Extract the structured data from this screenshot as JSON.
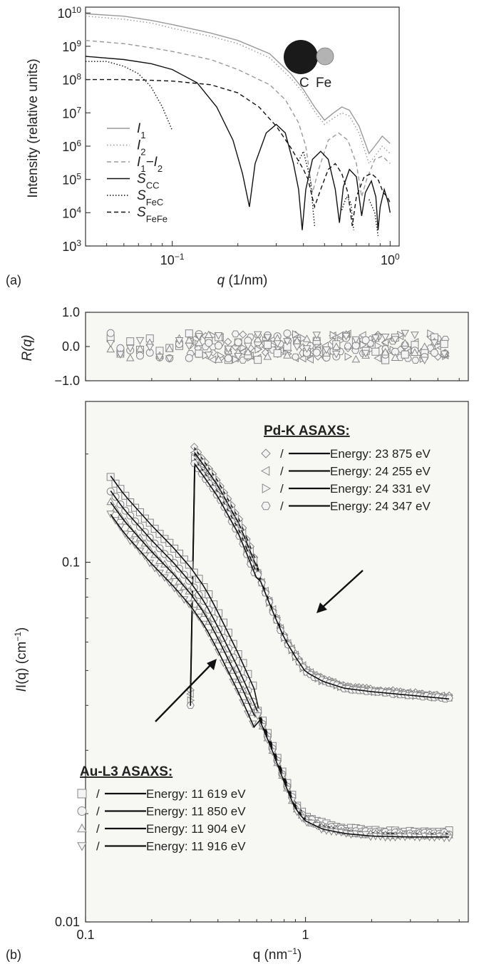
{
  "chart_data": [
    {
      "type": "line",
      "panel_label": "(a)",
      "xlabel_var": "q",
      "xlabel_unit": " (1/nm)",
      "ylabel": "Intensity (relative units)",
      "x_scale": "log",
      "y_scale": "log",
      "xlim": [
        0.04,
        1.1
      ],
      "ylim": [
        1000,
        15000000000
      ],
      "x_ticks": [
        {
          "base": "10",
          "exp": "−1",
          "value": 0.1
        },
        {
          "base": "10",
          "exp": "0",
          "value": 1
        }
      ],
      "y_ticks": [
        {
          "base": "10",
          "exp": "3",
          "value": 1000
        },
        {
          "base": "10",
          "exp": "4",
          "value": 10000
        },
        {
          "base": "10",
          "exp": "5",
          "value": 100000
        },
        {
          "base": "10",
          "exp": "6",
          "value": 1000000
        },
        {
          "base": "10",
          "exp": "7",
          "value": 10000000
        },
        {
          "base": "10",
          "exp": "8",
          "value": 100000000
        },
        {
          "base": "10",
          "exp": "9",
          "value": 1000000000
        },
        {
          "base": "10",
          "exp": "10",
          "value": 10000000000
        }
      ],
      "legend_position": "left",
      "series": [
        {
          "name": "I",
          "name_sub": "1",
          "color": "#9a9a9a",
          "dash": "",
          "points": [
            [
              0.04,
              9500000000.0
            ],
            [
              0.06,
              8000000000.0
            ],
            [
              0.08,
              6000000000.0
            ],
            [
              0.1,
              4500000000.0
            ],
            [
              0.15,
              2500000000.0
            ],
            [
              0.2,
              1500000000.0
            ],
            [
              0.28,
              600000000.0
            ],
            [
              0.35,
              150000000.0
            ],
            [
              0.4,
              50000000.0
            ],
            [
              0.45,
              15000000.0
            ],
            [
              0.5,
              6000000.0
            ],
            [
              0.55,
              10000000.0
            ],
            [
              0.6,
              15000000.0
            ],
            [
              0.65,
              12000000.0
            ],
            [
              0.72,
              4000000.0
            ],
            [
              0.8,
              600000.0
            ],
            [
              0.85,
              1000000.0
            ],
            [
              0.92,
              2000000.0
            ],
            [
              1.0,
              1200000.0
            ]
          ]
        },
        {
          "name": "I",
          "name_sub": "2",
          "color": "#9a9a9a",
          "dash": "1.5 3",
          "points": [
            [
              0.04,
              8000000000.0
            ],
            [
              0.06,
              6500000000.0
            ],
            [
              0.08,
              5000000000.0
            ],
            [
              0.1,
              3500000000.0
            ],
            [
              0.15,
              2000000000.0
            ],
            [
              0.2,
              1200000000.0
            ],
            [
              0.28,
              450000000.0
            ],
            [
              0.35,
              110000000.0
            ],
            [
              0.4,
              40000000.0
            ],
            [
              0.45,
              11000000.0
            ],
            [
              0.5,
              4500000.0
            ],
            [
              0.55,
              7000000.0
            ],
            [
              0.6,
              10000000.0
            ],
            [
              0.65,
              8000000.0
            ],
            [
              0.72,
              2500000.0
            ],
            [
              0.8,
              300000.0
            ],
            [
              0.85,
              500000.0
            ],
            [
              0.92,
              1000000.0
            ],
            [
              1.0,
              600000.0
            ]
          ]
        },
        {
          "name": "I",
          "name_sub": "1",
          "name_tail": "−I",
          "name_sub2": "2",
          "color": "#9a9a9a",
          "dash": "6 4",
          "points": [
            [
              0.04,
              1500000000.0
            ],
            [
              0.06,
              1200000000.0
            ],
            [
              0.08,
              900000000.0
            ],
            [
              0.1,
              700000000.0
            ],
            [
              0.15,
              400000000.0
            ],
            [
              0.2,
              200000000.0
            ],
            [
              0.28,
              70000000.0
            ],
            [
              0.33,
              25000000.0
            ],
            [
              0.38,
              5000000.0
            ],
            [
              0.41,
              1000000.0
            ],
            [
              0.44,
              40000.0
            ],
            [
              0.47,
              200000.0
            ],
            [
              0.52,
              1500000.0
            ],
            [
              0.58,
              2500000.0
            ],
            [
              0.64,
              1500000.0
            ],
            [
              0.7,
              300000.0
            ],
            [
              0.74,
              30000.0
            ],
            [
              0.78,
              100000.0
            ],
            [
              0.85,
              400000.0
            ],
            [
              0.92,
              500000.0
            ],
            [
              1.0,
              300000.0
            ]
          ]
        },
        {
          "name": "S",
          "name_sub": "CC",
          "color": "#111111",
          "dash": "",
          "points": [
            [
              0.04,
              500000000.0
            ],
            [
              0.06,
              400000000.0
            ],
            [
              0.08,
              300000000.0
            ],
            [
              0.1,
              200000000.0
            ],
            [
              0.13,
              80000000.0
            ],
            [
              0.16,
              15000000.0
            ],
            [
              0.19,
              1500000.0
            ],
            [
              0.21,
              150000.0
            ],
            [
              0.226,
              15000.0
            ],
            [
              0.24,
              300000.0
            ],
            [
              0.27,
              2500000.0
            ],
            [
              0.3,
              4500000.0
            ],
            [
              0.33,
              2500000.0
            ],
            [
              0.36,
              300000.0
            ],
            [
              0.38,
              50000.0
            ],
            [
              0.395,
              3000.0
            ],
            [
              0.41,
              50000.0
            ],
            [
              0.44,
              400000.0
            ],
            [
              0.48,
              700000.0
            ],
            [
              0.52,
              400000.0
            ],
            [
              0.56,
              50000.0
            ],
            [
              0.585,
              5000.0
            ],
            [
              0.61,
              60000.0
            ],
            [
              0.65,
              200000.0
            ],
            [
              0.7,
              120000.0
            ],
            [
              0.74,
              8000.0
            ],
            [
              0.77,
              40000.0
            ],
            [
              0.82,
              90000.0
            ],
            [
              0.86,
              30000.0
            ],
            [
              0.88,
              3000.0
            ],
            [
              0.9,
              15000.0
            ],
            [
              0.94,
              50000.0
            ],
            [
              0.98,
              20000.0
            ],
            [
              1.0,
              10000.0
            ]
          ]
        },
        {
          "name": "S",
          "name_sub": "FeC",
          "color": "#111111",
          "dash": "1.5 2.5",
          "groups": [
            [
              [
                0.04,
                350000000.0
              ],
              [
                0.05,
                350000000.0
              ],
              [
                0.06,
                250000000.0
              ],
              [
                0.07,
                150000000.0
              ],
              [
                0.08,
                60000000.0
              ],
              [
                0.09,
                15000000.0
              ],
              [
                0.1,
                3000000.0
              ]
            ],
            [
              [
                0.375,
                300000.0
              ],
              [
                0.4,
                700000.0
              ],
              [
                0.43,
                100000.0
              ],
              [
                0.45,
                4000.0
              ]
            ],
            [
              [
                0.6,
                12000.0
              ],
              [
                0.63,
                30000.0
              ],
              [
                0.66,
                20000.0
              ],
              [
                0.68,
                3000.0
              ]
            ],
            [
              [
                0.8,
                25000.0
              ],
              [
                0.85,
                10000.0
              ],
              [
                0.88,
                2000.0
              ]
            ]
          ]
        },
        {
          "name": "S",
          "name_sub": "FeFe",
          "color": "#111111",
          "dash": "6 4",
          "points": [
            [
              0.04,
              100000000.0
            ],
            [
              0.06,
              100000000.0
            ],
            [
              0.08,
              95000000.0
            ],
            [
              0.1,
              90000000.0
            ],
            [
              0.15,
              70000000.0
            ],
            [
              0.2,
              40000000.0
            ],
            [
              0.25,
              15000000.0
            ],
            [
              0.3,
              4000000.0
            ],
            [
              0.35,
              900000.0
            ],
            [
              0.4,
              200000.0
            ],
            [
              0.42,
              100000.0
            ],
            [
              0.45,
              15000.0
            ],
            [
              0.48,
              50000.0
            ],
            [
              0.52,
              200000.0
            ],
            [
              0.56,
              300000.0
            ],
            [
              0.6,
              150000.0
            ],
            [
              0.64,
              40000.0
            ],
            [
              0.67,
              4000.0
            ],
            [
              0.7,
              30000.0
            ],
            [
              0.76,
              120000.0
            ],
            [
              0.82,
              150000.0
            ],
            [
              0.88,
              100000.0
            ],
            [
              0.93,
              40000.0
            ],
            [
              0.97,
              30000.0
            ],
            [
              1.0,
              20000.0
            ]
          ]
        }
      ],
      "inset": {
        "label_c": "C",
        "label_fe": "Fe"
      }
    },
    {
      "type": "scatter",
      "panel_label": "(b)",
      "xlabel_base": "q (nm",
      "xlabel_exp": "−1",
      "xlabel_end": ")",
      "x_scale": "log",
      "xlim": [
        0.1,
        5.5
      ],
      "x_ticks": [
        {
          "label": "0.1",
          "value": 0.1
        },
        {
          "label": "1",
          "value": 1
        }
      ],
      "residuals": {
        "ylabel": "R(q)",
        "ylim": [
          -1.0,
          1.0
        ],
        "y_ticks": [
          "1.0",
          "0.0",
          "−1.0"
        ],
        "y_tick_values": [
          1.0,
          0.0,
          -1.0
        ],
        "note": "residual scatter of all fits around 0, spread about ±0.4"
      },
      "main": {
        "ylabel_base": "I(q) (cm",
        "ylabel_exp": "−1",
        "ylabel_end": ")",
        "y_scale": "log",
        "ylim": [
          0.01,
          0.28
        ],
        "y_ticks": [
          {
            "label": "0.1",
            "value": 0.1
          },
          {
            "label": "0.01",
            "value": 0.01
          }
        ]
      },
      "groups": [
        {
          "title": "Pd-K ASAXS:",
          "legend_position": "top-right",
          "entries": [
            {
              "marker": "diamond",
              "sep": "/",
              "label": "Energy: 23 875 eV"
            },
            {
              "marker": "triangle-left",
              "sep": "/",
              "label": "Energy: 24 255 eV"
            },
            {
              "marker": "triangle-right",
              "sep": "/",
              "label": "Energy: 24 331 eV"
            },
            {
              "marker": "hexagon",
              "sep": "/",
              "label": "Energy: 24 347 eV"
            }
          ],
          "curve": [
            [
              0.3,
              0.205
            ],
            [
              0.35,
              0.18
            ],
            [
              0.4,
              0.16
            ],
            [
              0.5,
              0.125
            ],
            [
              0.6,
              0.095
            ],
            [
              0.7,
              0.075
            ],
            [
              0.8,
              0.062
            ],
            [
              0.9,
              0.055
            ],
            [
              1.0,
              0.05
            ],
            [
              1.2,
              0.047
            ],
            [
              1.5,
              0.045
            ],
            [
              2.0,
              0.044
            ],
            [
              3.0,
              0.043
            ],
            [
              4.5,
              0.042
            ]
          ],
          "curve_factors": [
            1.05,
            1.02,
            0.98,
            0.95
          ]
        },
        {
          "title": "Au-L3 ASAXS:",
          "legend_position": "bottom-left",
          "entries": [
            {
              "marker": "square",
              "sep": "/",
              "label": "Energy: 11 619 eV"
            },
            {
              "marker": "circle",
              "sep": "/",
              "label": "Energy: 11 850 eV"
            },
            {
              "marker": "triangle-up",
              "sep": "/",
              "label": "Energy: 11 904 eV"
            },
            {
              "marker": "triangle-down",
              "sep": "/",
              "label": "Energy: 11 916 eV"
            }
          ],
          "curve": [
            [
              0.13,
              0.158
            ],
            [
              0.15,
              0.14
            ],
            [
              0.2,
              0.115
            ],
            [
              0.25,
              0.1
            ],
            [
              0.3,
              0.088
            ],
            [
              0.35,
              0.077
            ],
            [
              0.4,
              0.066
            ],
            [
              0.5,
              0.05
            ],
            [
              0.6,
              0.039
            ],
            [
              0.7,
              0.031
            ],
            [
              0.8,
              0.025
            ],
            [
              0.9,
              0.021
            ],
            [
              1.0,
              0.0195
            ],
            [
              1.2,
              0.0185
            ],
            [
              1.5,
              0.018
            ],
            [
              2.0,
              0.0177
            ],
            [
              3.0,
              0.0176
            ],
            [
              4.5,
              0.0176
            ]
          ],
          "curve_factors": [
            1.1,
            1.0,
            0.93,
            0.86
          ]
        }
      ]
    }
  ]
}
